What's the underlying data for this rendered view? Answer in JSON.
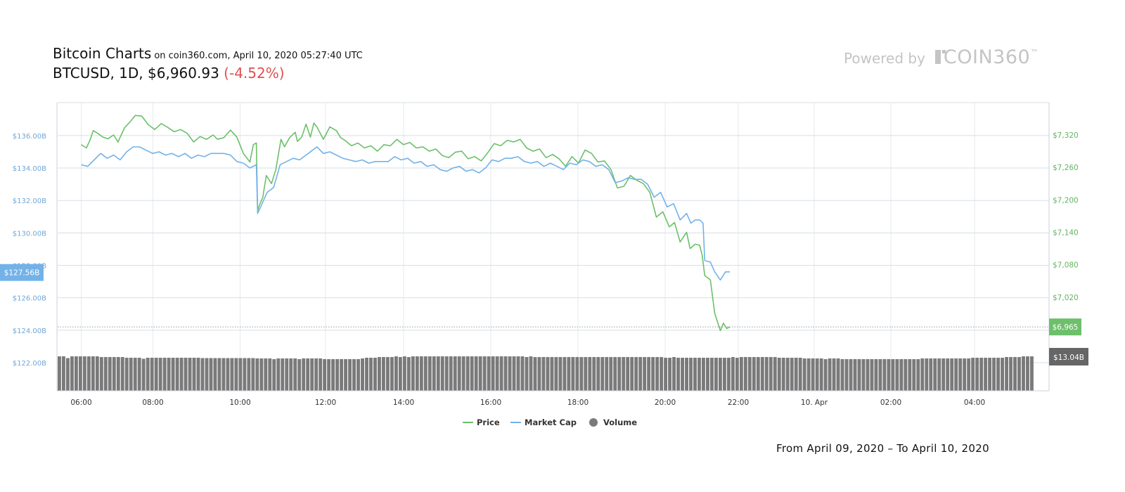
{
  "header": {
    "title": "Bitcoin Charts",
    "subtitle": "on coin360.com, April 10, 2020 05:27:40 UTC",
    "pair": "BTCUSD, 1D, $6,960.93",
    "change": "(-4.52%)"
  },
  "branding": {
    "powered_by": "Powered by",
    "brand": "COIN360",
    "trademark": "™"
  },
  "footer": {
    "range": "From April 09, 2020 – To April 10, 2020"
  },
  "colors": {
    "price": "#6cc06a",
    "market_cap": "#73b2e8",
    "volume": "#7a7a7a",
    "change": "#e05050"
  },
  "chart_data": {
    "type": "line",
    "x_ticks": [
      "06:00",
      "08:00",
      "10:00",
      "12:00",
      "14:00",
      "16:00",
      "18:00",
      "20:00",
      "22:00",
      "10. Apr",
      "02:00",
      "04:00"
    ],
    "y_left_ticks": [
      "$136.00B",
      "$134.00B",
      "$132.00B",
      "$130.00B",
      "$128.00B",
      "$126.00B",
      "$124.00B",
      "$122.00B"
    ],
    "y_right_ticks": [
      "$7,320",
      "$7,260",
      "$7,200",
      "$7,140",
      "$7,080",
      "$7,020"
    ],
    "ylim_left": [
      121.5,
      138
    ],
    "ylim_right": [
      6960,
      7380
    ],
    "legend": {
      "position": "bottom-center",
      "items": [
        {
          "name": "Price",
          "kind": "line",
          "color": "#6cc06a"
        },
        {
          "name": "Market Cap",
          "kind": "line",
          "color": "#73b2e8"
        },
        {
          "name": "Volume",
          "kind": "dot",
          "color": "#7a7a7a"
        }
      ]
    },
    "current": {
      "market_cap_label": "$127.56B",
      "price_label": "$6,965",
      "volume_label": "$13.04B",
      "price_value": 6965
    },
    "series": [
      {
        "name": "Price",
        "axis": "right",
        "color": "#6cc06a",
        "points": [
          [
            0.0,
            7302
          ],
          [
            0.12,
            7296
          ],
          [
            0.2,
            7310
          ],
          [
            0.28,
            7328
          ],
          [
            0.38,
            7323
          ],
          [
            0.5,
            7316
          ],
          [
            0.62,
            7313
          ],
          [
            0.75,
            7320
          ],
          [
            0.85,
            7307
          ],
          [
            1.0,
            7333
          ],
          [
            1.15,
            7346
          ],
          [
            1.25,
            7356
          ],
          [
            1.4,
            7355
          ],
          [
            1.55,
            7339
          ],
          [
            1.7,
            7330
          ],
          [
            1.85,
            7341
          ],
          [
            2.0,
            7334
          ],
          [
            2.15,
            7326
          ],
          [
            2.3,
            7330
          ],
          [
            2.45,
            7323
          ],
          [
            2.6,
            7307
          ],
          [
            2.75,
            7317
          ],
          [
            2.9,
            7312
          ],
          [
            3.05,
            7320
          ],
          [
            3.15,
            7312
          ],
          [
            3.3,
            7315
          ],
          [
            3.45,
            7329
          ],
          [
            3.6,
            7316
          ],
          [
            3.75,
            7286
          ],
          [
            3.9,
            7270
          ],
          [
            3.98,
            7302
          ],
          [
            4.05,
            7305
          ],
          [
            4.08,
            7180
          ],
          [
            4.12,
            7190
          ],
          [
            4.2,
            7205
          ],
          [
            4.28,
            7245
          ],
          [
            4.4,
            7230
          ],
          [
            4.5,
            7256
          ],
          [
            4.62,
            7312
          ],
          [
            4.7,
            7298
          ],
          [
            4.82,
            7315
          ],
          [
            4.95,
            7325
          ],
          [
            5.0,
            7308
          ],
          [
            5.1,
            7316
          ],
          [
            5.2,
            7340
          ],
          [
            5.3,
            7316
          ],
          [
            5.38,
            7342
          ],
          [
            5.45,
            7335
          ],
          [
            5.6,
            7312
          ],
          [
            5.75,
            7335
          ],
          [
            5.9,
            7328
          ],
          [
            6.0,
            7315
          ],
          [
            6.1,
            7310
          ],
          [
            6.25,
            7300
          ],
          [
            6.4,
            7305
          ],
          [
            6.55,
            7296
          ],
          [
            6.7,
            7300
          ],
          [
            6.85,
            7290
          ],
          [
            7.0,
            7302
          ],
          [
            7.15,
            7300
          ],
          [
            7.3,
            7312
          ],
          [
            7.45,
            7302
          ],
          [
            7.6,
            7306
          ],
          [
            7.75,
            7296
          ],
          [
            7.9,
            7298
          ],
          [
            8.05,
            7290
          ],
          [
            8.2,
            7294
          ],
          [
            8.35,
            7282
          ],
          [
            8.5,
            7278
          ],
          [
            8.65,
            7288
          ],
          [
            8.8,
            7290
          ],
          [
            8.95,
            7276
          ],
          [
            9.1,
            7280
          ],
          [
            9.25,
            7272
          ],
          [
            9.4,
            7287
          ],
          [
            9.55,
            7304
          ],
          [
            9.7,
            7300
          ],
          [
            9.85,
            7310
          ],
          [
            10.0,
            7307
          ],
          [
            10.15,
            7312
          ],
          [
            10.3,
            7296
          ],
          [
            10.45,
            7290
          ],
          [
            10.6,
            7294
          ],
          [
            10.75,
            7278
          ],
          [
            10.9,
            7284
          ],
          [
            11.05,
            7276
          ],
          [
            11.2,
            7262
          ],
          [
            11.35,
            7280
          ],
          [
            11.5,
            7268
          ],
          [
            11.65,
            7292
          ],
          [
            11.8,
            7286
          ],
          [
            11.95,
            7270
          ],
          [
            12.1,
            7272
          ],
          [
            12.25,
            7256
          ],
          [
            12.4,
            7222
          ],
          [
            12.55,
            7225
          ],
          [
            12.7,
            7245
          ],
          [
            12.85,
            7236
          ],
          [
            13.0,
            7230
          ],
          [
            13.15,
            7214
          ],
          [
            13.3,
            7168
          ],
          [
            13.45,
            7178
          ],
          [
            13.6,
            7150
          ],
          [
            13.72,
            7158
          ],
          [
            13.85,
            7122
          ],
          [
            14.0,
            7140
          ],
          [
            14.08,
            7110
          ],
          [
            14.2,
            7118
          ],
          [
            14.3,
            7116
          ],
          [
            14.36,
            7098
          ],
          [
            14.42,
            7060
          ],
          [
            14.55,
            7052
          ],
          [
            14.65,
            6990
          ],
          [
            14.78,
            6958
          ],
          [
            14.85,
            6972
          ],
          [
            14.93,
            6962
          ],
          [
            15.0,
            6965
          ]
        ]
      },
      {
        "name": "Market Cap",
        "axis": "left",
        "color": "#73b2e8",
        "points": [
          [
            0.0,
            134.2
          ],
          [
            0.15,
            134.1
          ],
          [
            0.3,
            134.5
          ],
          [
            0.45,
            134.9
          ],
          [
            0.6,
            134.6
          ],
          [
            0.75,
            134.8
          ],
          [
            0.9,
            134.5
          ],
          [
            1.05,
            135.0
          ],
          [
            1.2,
            135.3
          ],
          [
            1.35,
            135.3
          ],
          [
            1.5,
            135.1
          ],
          [
            1.65,
            134.9
          ],
          [
            1.8,
            135.0
          ],
          [
            1.95,
            134.8
          ],
          [
            2.1,
            134.9
          ],
          [
            2.25,
            134.7
          ],
          [
            2.4,
            134.9
          ],
          [
            2.55,
            134.6
          ],
          [
            2.7,
            134.8
          ],
          [
            2.85,
            134.7
          ],
          [
            3.0,
            134.9
          ],
          [
            3.15,
            134.9
          ],
          [
            3.3,
            134.9
          ],
          [
            3.45,
            134.8
          ],
          [
            3.6,
            134.4
          ],
          [
            3.75,
            134.3
          ],
          [
            3.9,
            134.0
          ],
          [
            4.05,
            134.2
          ],
          [
            4.08,
            131.2
          ],
          [
            4.15,
            131.6
          ],
          [
            4.3,
            132.5
          ],
          [
            4.45,
            132.8
          ],
          [
            4.6,
            134.2
          ],
          [
            4.75,
            134.4
          ],
          [
            4.9,
            134.6
          ],
          [
            5.05,
            134.5
          ],
          [
            5.2,
            134.8
          ],
          [
            5.35,
            135.1
          ],
          [
            5.45,
            135.3
          ],
          [
            5.6,
            134.9
          ],
          [
            5.75,
            135.0
          ],
          [
            5.9,
            134.8
          ],
          [
            6.05,
            134.6
          ],
          [
            6.2,
            134.5
          ],
          [
            6.35,
            134.4
          ],
          [
            6.5,
            134.5
          ],
          [
            6.65,
            134.3
          ],
          [
            6.8,
            134.4
          ],
          [
            6.95,
            134.4
          ],
          [
            7.1,
            134.4
          ],
          [
            7.25,
            134.7
          ],
          [
            7.4,
            134.5
          ],
          [
            7.55,
            134.6
          ],
          [
            7.7,
            134.3
          ],
          [
            7.85,
            134.4
          ],
          [
            8.0,
            134.1
          ],
          [
            8.15,
            134.2
          ],
          [
            8.3,
            133.9
          ],
          [
            8.45,
            133.8
          ],
          [
            8.6,
            134.0
          ],
          [
            8.75,
            134.1
          ],
          [
            8.9,
            133.8
          ],
          [
            9.05,
            133.9
          ],
          [
            9.2,
            133.7
          ],
          [
            9.35,
            134.0
          ],
          [
            9.5,
            134.5
          ],
          [
            9.65,
            134.4
          ],
          [
            9.8,
            134.6
          ],
          [
            9.95,
            134.6
          ],
          [
            10.1,
            134.7
          ],
          [
            10.25,
            134.4
          ],
          [
            10.4,
            134.3
          ],
          [
            10.55,
            134.4
          ],
          [
            10.7,
            134.1
          ],
          [
            10.85,
            134.3
          ],
          [
            11.0,
            134.1
          ],
          [
            11.15,
            133.9
          ],
          [
            11.3,
            134.3
          ],
          [
            11.45,
            134.2
          ],
          [
            11.6,
            134.5
          ],
          [
            11.75,
            134.4
          ],
          [
            11.9,
            134.1
          ],
          [
            12.05,
            134.2
          ],
          [
            12.2,
            133.9
          ],
          [
            12.35,
            133.1
          ],
          [
            12.5,
            133.2
          ],
          [
            12.65,
            133.4
          ],
          [
            12.8,
            133.3
          ],
          [
            12.95,
            133.3
          ],
          [
            13.1,
            133.0
          ],
          [
            13.25,
            132.2
          ],
          [
            13.4,
            132.5
          ],
          [
            13.55,
            131.6
          ],
          [
            13.7,
            131.8
          ],
          [
            13.85,
            130.8
          ],
          [
            14.0,
            131.2
          ],
          [
            14.1,
            130.6
          ],
          [
            14.2,
            130.8
          ],
          [
            14.3,
            130.8
          ],
          [
            14.38,
            130.6
          ],
          [
            14.42,
            128.3
          ],
          [
            14.55,
            128.2
          ],
          [
            14.65,
            127.6
          ],
          [
            14.78,
            127.1
          ],
          [
            14.9,
            127.6
          ],
          [
            15.0,
            127.6
          ]
        ]
      },
      {
        "name": "Volume",
        "axis": "volume",
        "color": "#7a7a7a",
        "values": [
          1.0,
          1.0,
          0.95,
          1.0,
          1.0,
          1.0,
          1.0,
          1.0,
          1.0,
          1.0,
          0.98,
          0.98,
          0.98,
          0.98,
          0.98,
          0.98,
          0.96,
          0.96,
          0.96,
          0.96,
          0.93,
          0.96,
          0.96,
          0.96,
          0.96,
          0.96,
          0.96,
          0.96,
          0.96,
          0.96,
          0.96,
          0.96,
          0.96,
          0.96,
          0.95,
          0.95,
          0.95,
          0.95,
          0.95,
          0.95,
          0.95,
          0.95,
          0.95,
          0.95,
          0.95,
          0.95,
          0.95,
          0.94,
          0.94,
          0.94,
          0.94,
          0.92,
          0.94,
          0.94,
          0.94,
          0.94,
          0.94,
          0.92,
          0.94,
          0.94,
          0.94,
          0.94,
          0.94,
          0.92,
          0.92,
          0.92,
          0.92,
          0.92,
          0.92,
          0.92,
          0.92,
          0.92,
          0.94,
          0.96,
          0.96,
          0.96,
          0.98,
          0.98,
          0.98,
          0.98,
          1.0,
          0.98,
          1.0,
          0.98,
          1.0,
          1.0,
          1.0,
          1.0,
          1.0,
          1.0,
          1.0,
          1.0,
          1.0,
          1.0,
          1.0,
          1.0,
          1.0,
          1.0,
          1.0,
          1.0,
          1.0,
          1.0,
          1.0,
          1.0,
          1.0,
          1.0,
          1.0,
          1.0,
          1.0,
          1.0,
          1.0,
          0.98,
          1.0,
          0.98,
          0.98,
          0.98,
          0.98,
          0.98,
          0.98,
          0.98,
          0.98,
          0.98,
          0.98,
          0.98,
          0.98,
          0.98,
          0.98,
          0.98,
          0.98,
          0.98,
          0.98,
          0.98,
          0.98,
          0.98,
          0.98,
          0.98,
          0.98,
          0.98,
          0.98,
          0.98,
          0.98,
          0.98,
          0.98,
          0.98,
          0.96,
          0.96,
          0.98,
          0.96,
          0.96,
          0.96,
          0.96,
          0.96,
          0.96,
          0.96,
          0.96,
          0.96,
          0.96,
          0.96,
          0.96,
          0.96,
          0.98,
          0.96,
          0.98,
          0.98,
          0.98,
          0.98,
          0.98,
          0.98,
          0.98,
          0.98,
          0.98,
          0.96,
          0.96,
          0.96,
          0.96,
          0.96,
          0.96,
          0.94,
          0.94,
          0.94,
          0.94,
          0.94,
          0.92,
          0.94,
          0.94,
          0.94,
          0.92,
          0.92,
          0.92,
          0.92,
          0.92,
          0.92,
          0.92,
          0.92,
          0.92,
          0.92,
          0.92,
          0.92,
          0.92,
          0.92,
          0.92,
          0.92,
          0.92,
          0.92,
          0.92,
          0.94,
          0.94,
          0.94,
          0.94,
          0.94,
          0.94,
          0.94,
          0.94,
          0.94,
          0.94,
          0.94,
          0.94,
          0.96,
          0.96,
          0.96,
          0.96,
          0.96,
          0.96,
          0.96,
          0.96,
          0.98,
          0.98,
          0.98,
          0.98,
          1.0,
          1.0,
          1.0
        ]
      }
    ]
  }
}
